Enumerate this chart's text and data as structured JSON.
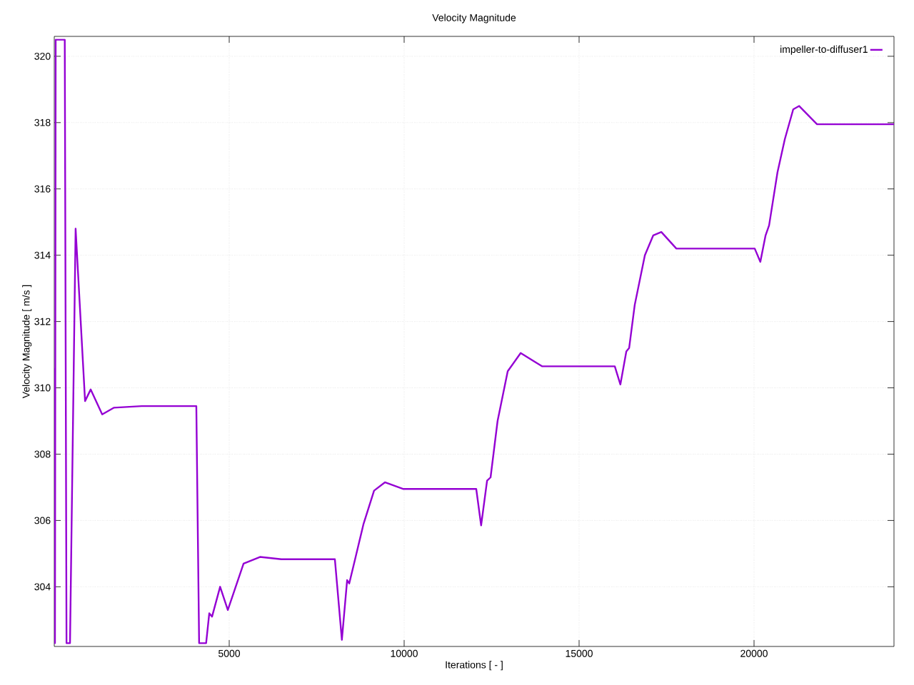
{
  "chart_data": {
    "type": "line",
    "title": "Velocity Magnitude",
    "xlabel": "Iterations [ - ]",
    "ylabel": "Velocity Magnitude [ m/s ]",
    "x": [
      0,
      20,
      40,
      300,
      350,
      450,
      610,
      880,
      1040,
      1370,
      1700,
      2500,
      4060,
      4140,
      4340,
      4430,
      4510,
      4740,
      4960,
      5410,
      5880,
      6490,
      8020,
      8220,
      8370,
      8430,
      8590,
      8840,
      9140,
      9450,
      9980,
      12060,
      12200,
      12370,
      12470,
      12670,
      12960,
      13330,
      13940,
      16020,
      16180,
      16350,
      16430,
      16590,
      16880,
      17120,
      17350,
      17780,
      20020,
      20180,
      20330,
      20430,
      20670,
      20880,
      21120,
      21290,
      21800,
      24000
    ],
    "series": [
      {
        "name": "impeller-to-diffuser1",
        "color": "#9400d3",
        "values": [
          310.6,
          302.3,
          320.5,
          320.5,
          302.3,
          302.3,
          314.8,
          309.6,
          309.95,
          309.2,
          309.4,
          309.45,
          309.45,
          302.3,
          302.3,
          303.2,
          303.1,
          304.0,
          303.3,
          304.7,
          304.9,
          304.83,
          304.83,
          302.4,
          304.2,
          304.1,
          304.8,
          305.9,
          306.9,
          307.15,
          306.95,
          306.95,
          305.85,
          307.2,
          307.3,
          309.0,
          310.5,
          311.05,
          310.65,
          310.65,
          310.1,
          311.1,
          311.2,
          312.5,
          314.0,
          314.6,
          314.7,
          314.2,
          314.2,
          313.8,
          314.6,
          314.9,
          316.5,
          317.5,
          318.4,
          318.5,
          317.95,
          317.95
        ]
      }
    ],
    "xlim": [
      0,
      24000
    ],
    "ylim": [
      302.2,
      320.6
    ],
    "xticks": [
      5000,
      10000,
      15000,
      20000
    ],
    "yticks": [
      304,
      306,
      308,
      310,
      312,
      314,
      316,
      318,
      320
    ],
    "grid": true,
    "legend": "top right",
    "marker": "none",
    "line_style": "solid"
  }
}
